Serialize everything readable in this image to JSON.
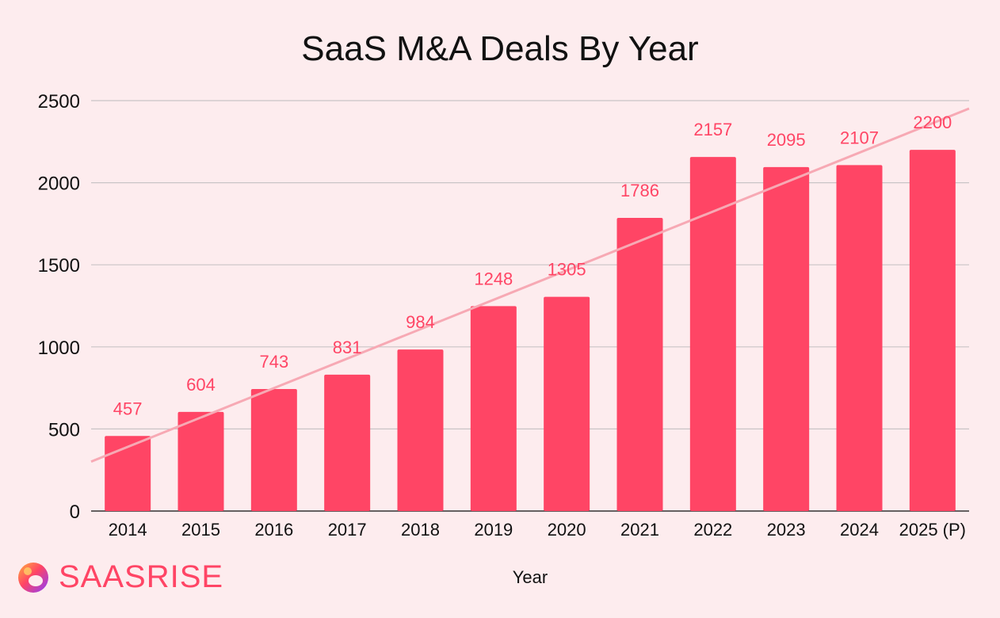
{
  "chart_data": {
    "type": "bar",
    "title": "SaaS M&A Deals By Year",
    "xlabel": "Year",
    "ylabel": "",
    "ylim": [
      0,
      2500
    ],
    "yticks": [
      0,
      500,
      1000,
      1500,
      2000,
      2500
    ],
    "categories": [
      "2014",
      "2015",
      "2016",
      "2017",
      "2018",
      "2019",
      "2020",
      "2021",
      "2022",
      "2023",
      "2024",
      "2025 (P)"
    ],
    "series": [
      {
        "name": "Deals",
        "values": [
          457,
          604,
          743,
          831,
          984,
          1248,
          1305,
          1786,
          2157,
          2095,
          2107,
          2200
        ]
      }
    ],
    "data_labels": true,
    "grid": true,
    "trendline": "linear",
    "colors": {
      "bar": "#ff4565",
      "trendline": "#f7a9b4",
      "data_label": "#ff4565",
      "grid": "#c9c4c6",
      "background": "#fdecee"
    }
  },
  "brand": {
    "name": "SAASRISE",
    "color": "#ff4565",
    "logo_icon": "saasrise-logo-icon"
  }
}
